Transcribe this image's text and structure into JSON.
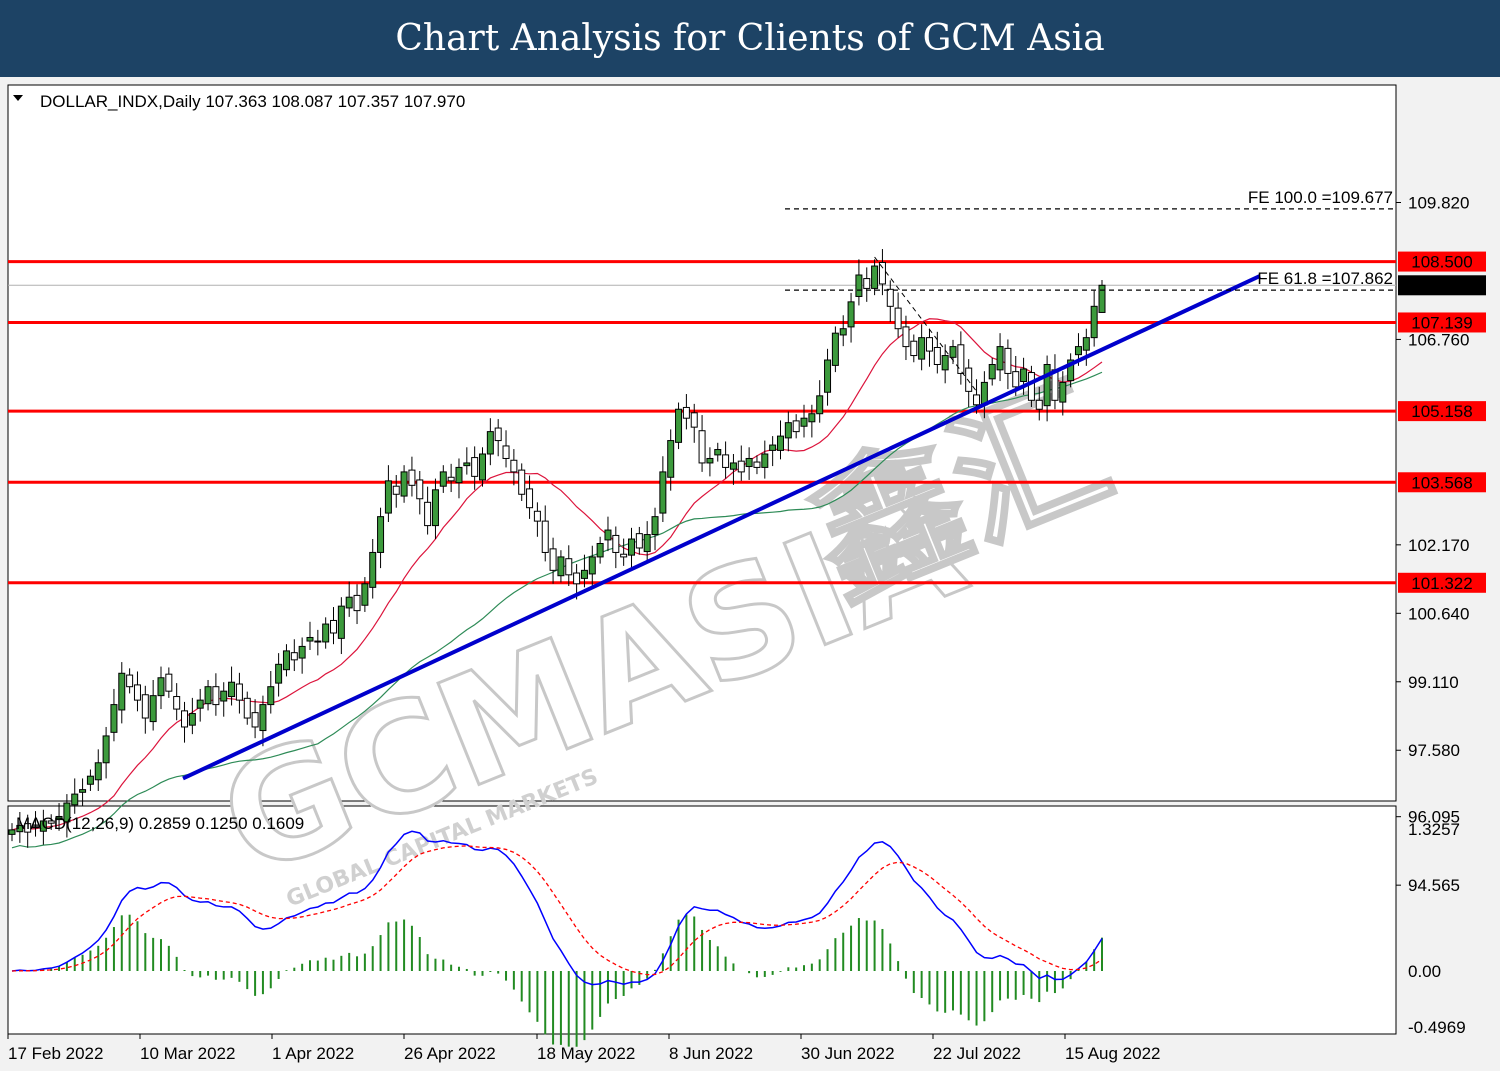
{
  "banner": {
    "title": "Chart Analysis for Clients of GCM Asia"
  },
  "chart_data": {
    "type": "candlestick",
    "symbol_header": "DOLLAR_INDX,Daily  107.363 108.087 107.357 107.970",
    "ohlc": {
      "open": 107.363,
      "high": 108.087,
      "low": 107.357,
      "close": 107.97
    },
    "current_price": "107.970",
    "y_ticks": [
      "109.820",
      "106.760",
      "102.170",
      "100.640",
      "99.110",
      "97.580",
      "96.095",
      "94.565"
    ],
    "x_ticks": [
      "17 Feb 2022",
      "10 Mar 2022",
      "1 Apr 2022",
      "26 Apr 2022",
      "18 May 2022",
      "8 Jun 2022",
      "30 Jun 2022",
      "22 Jul 2022",
      "15 Aug 2022"
    ],
    "ylim": [
      94.565,
      110.4
    ],
    "resistance_levels": [
      {
        "label": "108.500",
        "value": 108.5
      },
      {
        "label": "107.139",
        "value": 107.139
      },
      {
        "label": "105.158",
        "value": 105.158
      },
      {
        "label": "103.568",
        "value": 103.568
      },
      {
        "label": "101.322",
        "value": 101.322
      }
    ],
    "fibonacci": [
      {
        "label": "FE 100.0 =109.677",
        "value": 109.677
      },
      {
        "label": "FE 61.8 =107.862",
        "value": 107.862
      }
    ],
    "closes": [
      95.8,
      95.9,
      95.75,
      95.85,
      96.0,
      95.95,
      96.1,
      96.4,
      96.6,
      96.7,
      97.0,
      97.3,
      97.9,
      98.6,
      99.3,
      99.0,
      98.7,
      98.3,
      98.8,
      99.2,
      98.9,
      98.5,
      98.1,
      98.4,
      98.7,
      99.0,
      98.6,
      98.9,
      99.1,
      98.7,
      98.3,
      98.1,
      98.6,
      99.0,
      99.5,
      99.8,
      99.6,
      99.9,
      100.1,
      100.0,
      100.4,
      100.2,
      100.8,
      101.0,
      100.7,
      101.3,
      102.0,
      102.8,
      103.6,
      103.3,
      103.8,
      103.5,
      103.2,
      102.6,
      103.4,
      103.8,
      103.6,
      103.9,
      104.0,
      103.7,
      104.2,
      104.7,
      104.5,
      104.1,
      103.8,
      103.3,
      103.0,
      102.7,
      102.0,
      101.6,
      101.9,
      101.5,
      101.3,
      101.6,
      101.9,
      102.2,
      102.5,
      102.0,
      101.9,
      102.3,
      102.1,
      102.4,
      102.8,
      103.8,
      104.5,
      105.2,
      105.0,
      104.8,
      104.0,
      104.1,
      104.3,
      103.9,
      104.0,
      103.8,
      104.1,
      103.9,
      104.2,
      104.4,
      104.6,
      104.9,
      104.7,
      105.0,
      105.1,
      105.5,
      106.3,
      106.9,
      107.0,
      107.6,
      108.2,
      107.9,
      108.4,
      108.0,
      107.5,
      107.0,
      106.6,
      106.4,
      106.8,
      106.5,
      106.2,
      106.4,
      106.6,
      106.0,
      105.6,
      105.3,
      105.8,
      106.2,
      106.6,
      106.0,
      105.7,
      106.1,
      105.4,
      105.2,
      106.2,
      105.4,
      105.8,
      106.3,
      106.6,
      106.8,
      107.5,
      107.97
    ],
    "ma_red_label": "",
    "ma_green_label": "",
    "trendline": {
      "from": [
        96.95
      ],
      "to": [
        108.18
      ]
    },
    "macd_header": "MACD(12,26,9) 0.2859 0.1250 0.1609",
    "macd_ticks": [
      "1.3257",
      "0.00",
      "-0.4969"
    ],
    "macd_ylim": [
      -0.4969,
      1.3257
    ]
  },
  "watermark": {
    "brand": "GCMASIA",
    "sub": "GLOBAL CAPITAL MARKETS",
    "cn": "鑫汇"
  },
  "colors": {
    "banner": "#1d4365",
    "level": "#ff0000",
    "trend": "#0000cc",
    "bull": "#3c9a3c",
    "ma_red": "#dc143c",
    "ma_green": "#2e8b57",
    "macd": "#0000ff",
    "signal": "#ff0000",
    "hist": "#228b22"
  }
}
